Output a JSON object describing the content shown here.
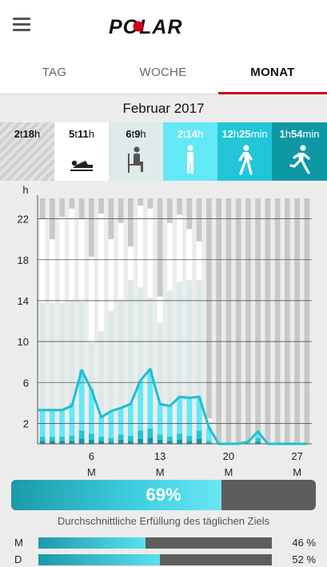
{
  "header": {
    "menu_icon": "hamburger-menu-icon",
    "logo_text": "POLAR"
  },
  "tabs": [
    {
      "label": "TAG",
      "active": false
    },
    {
      "label": "WOCHE",
      "active": false
    },
    {
      "label": "MONAT",
      "active": true
    }
  ],
  "month_title": "Februar 2017",
  "categories": [
    {
      "id": "unknown",
      "parts": [
        [
          "2",
          "t"
        ],
        [
          "18",
          "h"
        ]
      ],
      "icon": "none",
      "bg": "#d8d8d8",
      "fg": "#111"
    },
    {
      "id": "sleep",
      "parts": [
        [
          "5",
          "t"
        ],
        [
          "11",
          "h"
        ]
      ],
      "icon": "lying-person-icon",
      "bg": "#ffffff",
      "fg": "#111"
    },
    {
      "id": "sitting",
      "parts": [
        [
          "6",
          "t"
        ],
        [
          "9",
          "h"
        ]
      ],
      "icon": "sitting-person-icon",
      "bg": "#dfeaea",
      "fg": "#111"
    },
    {
      "id": "low",
      "parts": [
        [
          "2",
          "t"
        ],
        [
          "14",
          "h"
        ]
      ],
      "icon": "standing-person-icon",
      "bg": "#63e8f6",
      "fg": "#ffffff"
    },
    {
      "id": "medium",
      "parts": [
        [
          "12",
          "h"
        ],
        [
          "25",
          "min"
        ]
      ],
      "icon": "walking-person-icon",
      "bg": "#22c6d8",
      "fg": "#ffffff"
    },
    {
      "id": "high",
      "parts": [
        [
          "1",
          "h"
        ],
        [
          "54",
          "min"
        ]
      ],
      "icon": "running-person-icon",
      "bg": "#0e98a6",
      "fg": "#ffffff"
    }
  ],
  "chart_data": {
    "type": "bar",
    "title": "",
    "ylabel": "h",
    "ylim": [
      0,
      24
    ],
    "yticks": [
      2,
      6,
      10,
      14,
      18,
      22
    ],
    "x": [
      1,
      2,
      3,
      4,
      5,
      6,
      7,
      8,
      9,
      10,
      11,
      12,
      13,
      14,
      15,
      16,
      17,
      18,
      19,
      20,
      21,
      22,
      23,
      24,
      25,
      26,
      27,
      28
    ],
    "xticks": [
      {
        "day": 6,
        "label": "6",
        "weekday": "M"
      },
      {
        "day": 13,
        "label": "13",
        "weekday": "M"
      },
      {
        "day": 20,
        "label": "20",
        "weekday": "M"
      },
      {
        "day": 27,
        "label": "27",
        "weekday": "M"
      }
    ],
    "colors": {
      "unknown": "#c8c8c8",
      "sleep": "#ffffff",
      "sitting": "#dde9e9",
      "low": "#63e8f6",
      "medium": "#22c6d8",
      "high": "#0e98a6",
      "line": "#1fbecf"
    },
    "series": [
      {
        "id": "high",
        "values": [
          0.3,
          0.3,
          0.3,
          0.3,
          0.5,
          0.4,
          0.3,
          0.2,
          0.4,
          0.3,
          0.5,
          0.6,
          0.4,
          0.3,
          0.4,
          0.3,
          0.5,
          0.1,
          0,
          0,
          0,
          0,
          0.2,
          0,
          0,
          0,
          0,
          0
        ]
      },
      {
        "id": "medium",
        "values": [
          0.4,
          0.4,
          0.4,
          0.5,
          0.8,
          0.6,
          0.4,
          0.4,
          0.5,
          0.5,
          0.8,
          0.9,
          0.5,
          0.4,
          0.6,
          0.5,
          0.8,
          0.2,
          0,
          0,
          0,
          0,
          0.4,
          0,
          0,
          0,
          0,
          0
        ]
      },
      {
        "id": "low",
        "values": [
          2.6,
          2.6,
          2.7,
          3.2,
          5.9,
          4.4,
          2.0,
          2.5,
          2.6,
          3.1,
          4.9,
          5.8,
          3.0,
          3.0,
          3.6,
          3.7,
          3.3,
          1.3,
          0,
          0,
          0,
          0.2,
          0.6,
          0,
          0,
          0,
          0,
          0
        ]
      },
      {
        "id": "sitting",
        "values": [
          10.5,
          10.5,
          10.4,
          10,
          6.7,
          4.5,
          8.3,
          9.9,
          10.5,
          12.1,
          9.1,
          7.0,
          7.9,
          11.3,
          11.2,
          11.5,
          11.4,
          0.6,
          0,
          0,
          0,
          0,
          0,
          0,
          0,
          0,
          0,
          0
        ]
      },
      {
        "id": "sleep",
        "values": [
          8.2,
          6.2,
          8.4,
          9.0,
          8.1,
          8.4,
          11.5,
          7.0,
          7.6,
          3.3,
          8.0,
          8.7,
          2.6,
          6.6,
          6.6,
          5.0,
          3.8,
          0.3,
          0,
          0,
          0,
          0,
          0,
          0,
          0,
          0,
          0,
          0
        ]
      },
      {
        "id": "unknown",
        "values": [
          2.0,
          4.0,
          1.8,
          1.0,
          2.0,
          5.7,
          1.5,
          4.0,
          2.4,
          4.7,
          0.7,
          1.0,
          9.6,
          2.4,
          1.6,
          3.0,
          4.2,
          21.5,
          24,
          24,
          24,
          23.8,
          22.8,
          24,
          24,
          24,
          24,
          24
        ]
      }
    ],
    "line": [
      3.3,
      3.3,
      3.3,
      3.7,
      7.2,
      5.3,
      2.6,
      3.2,
      3.5,
      3.9,
      6.2,
      7.3,
      3.9,
      3.7,
      4.6,
      4.5,
      4.6,
      1.6,
      0,
      0,
      0,
      0.2,
      1.2,
      0,
      0,
      0,
      0,
      0
    ]
  },
  "progress": {
    "value": 0.69,
    "label": "69%"
  },
  "goal_caption": "Durchschnittliche Erfüllung des täglichen Ziels",
  "weekday_rows": [
    {
      "letter": "M",
      "value": 0.46,
      "label": "46 %"
    },
    {
      "letter": "D",
      "value": 0.52,
      "label": "52 %"
    }
  ]
}
